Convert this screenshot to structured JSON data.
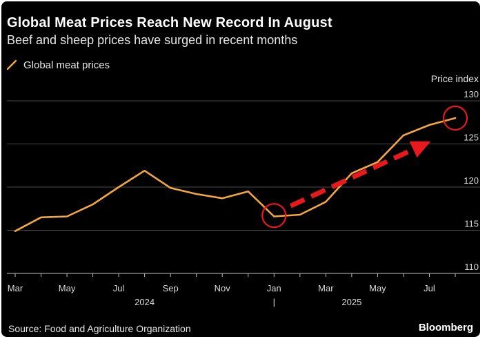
{
  "header": {
    "title": "Global Meat Prices Reach New Record In August",
    "subtitle": "Beef and sheep prices have surged in recent months"
  },
  "legend": {
    "label": "Global meat prices"
  },
  "footer": {
    "source": "Source: Food and Agriculture Organization",
    "brand": "Bloomberg"
  },
  "colors": {
    "background": "#000000",
    "line": "#f4a740",
    "grid": "#4a4a4a",
    "annotation": "#e8191c"
  },
  "chart_data": {
    "type": "line",
    "title": "Global Meat Prices Reach New Record In August",
    "subtitle": "Beef and sheep prices have surged in recent months",
    "ylabel": "Price index",
    "ylim": [
      110,
      130
    ],
    "yticks": [
      110,
      115,
      120,
      125,
      130
    ],
    "grid": true,
    "y_axis_side": "right",
    "legend_position": "top-left",
    "x": [
      "2024-03",
      "2024-04",
      "2024-05",
      "2024-06",
      "2024-07",
      "2024-08",
      "2024-09",
      "2024-10",
      "2024-11",
      "2024-12",
      "2025-01",
      "2025-02",
      "2025-03",
      "2025-04",
      "2025-05",
      "2025-06",
      "2025-07",
      "2025-08"
    ],
    "xtick_labels": [
      {
        "x": "2024-03",
        "label": "Mar"
      },
      {
        "x": "2024-05",
        "label": "May"
      },
      {
        "x": "2024-07",
        "label": "Jul"
      },
      {
        "x": "2024-09",
        "label": "Sep"
      },
      {
        "x": "2024-11",
        "label": "Nov"
      },
      {
        "x": "2025-01",
        "label": "Jan"
      },
      {
        "x": "2025-03",
        "label": "Mar"
      },
      {
        "x": "2025-05",
        "label": "May"
      },
      {
        "x": "2025-07",
        "label": "Jul"
      }
    ],
    "year_labels": [
      {
        "x": "2024-08",
        "label": "2024"
      },
      {
        "x": "2025-04",
        "label": "2025"
      }
    ],
    "year_divider": {
      "x": "2025-01",
      "label": "|"
    },
    "series": [
      {
        "name": "Global meat prices",
        "values": [
          114.9,
          116.5,
          116.6,
          118.0,
          120.0,
          121.9,
          119.9,
          119.2,
          118.7,
          119.5,
          116.6,
          116.8,
          118.3,
          121.6,
          122.9,
          126.0,
          127.2,
          128.0
        ]
      }
    ],
    "annotations": [
      {
        "type": "circle",
        "x": "2025-01",
        "y": 116.7,
        "color": "#e8191c"
      },
      {
        "type": "circle",
        "x": "2025-08",
        "y": 128.0,
        "color": "#e8191c"
      },
      {
        "type": "dashed-arrow",
        "from": {
          "x": "2025-01",
          "y": 117.5
        },
        "to": {
          "x": "2025-07",
          "y": 125.3
        },
        "color": "#e8191c"
      }
    ]
  }
}
